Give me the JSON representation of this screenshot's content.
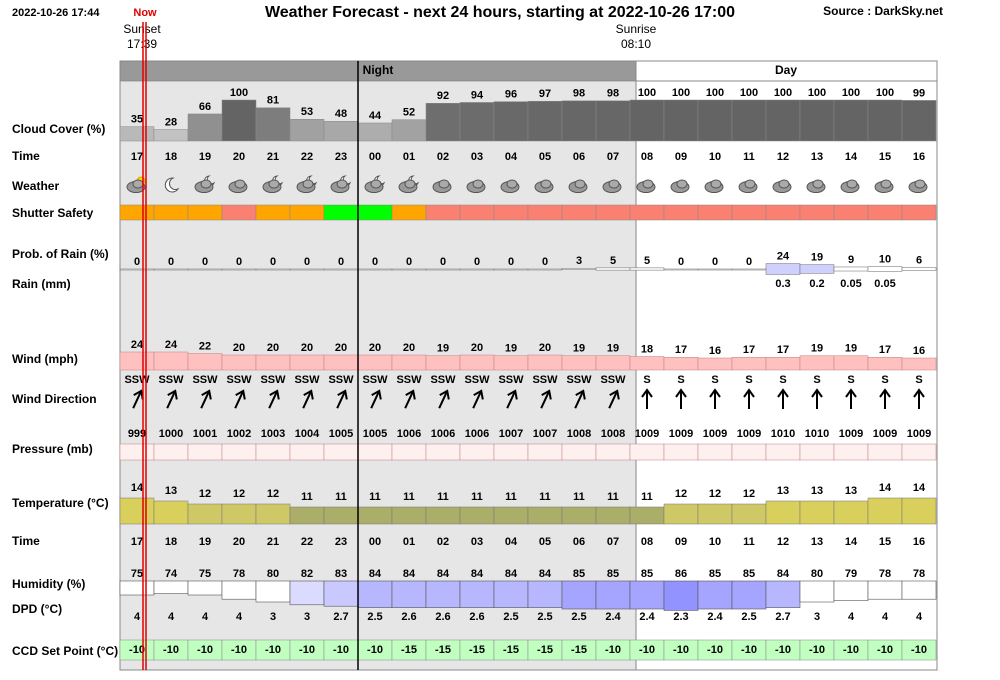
{
  "header": {
    "date": "2022-10-26 17:44",
    "now": "Now",
    "title": "Weather Forecast - next 24 hours, starting at 2022-10-26 17:00",
    "source": "Source : DarkSky.net",
    "sunset_label": "Sunset",
    "sunset_time": "17:39",
    "sunrise_label": "Sunrise",
    "sunrise_time": "08:10"
  },
  "bands": {
    "night": "Night",
    "day": "Day"
  },
  "hours": [
    "17",
    "18",
    "19",
    "20",
    "21",
    "22",
    "23",
    "00",
    "01",
    "02",
    "03",
    "04",
    "05",
    "06",
    "07",
    "08",
    "09",
    "10",
    "11",
    "12",
    "13",
    "14",
    "15",
    "16"
  ],
  "rows": {
    "cloud_cover": {
      "label": "Cloud Cover (%)",
      "values": [
        35,
        28,
        66,
        100,
        81,
        53,
        48,
        44,
        52,
        92,
        94,
        96,
        97,
        98,
        98,
        100,
        100,
        100,
        100,
        100,
        100,
        100,
        100,
        99
      ]
    },
    "time_label": "Time",
    "weather": {
      "label": "Weather"
    },
    "shutter_safety": {
      "label": "Shutter Safety",
      "colors": [
        "#ffa500",
        "#ffa500",
        "#ffa500",
        "#fa8072",
        "#ffa500",
        "#ffa500",
        "#00ff00",
        "#00ff00",
        "#ffa500",
        "#fa8072",
        "#fa8072",
        "#fa8072",
        "#fa8072",
        "#fa8072",
        "#fa8072",
        "#fa8072",
        "#fa8072",
        "#fa8072",
        "#fa8072",
        "#fa8072",
        "#fa8072",
        "#fa8072",
        "#fa8072",
        "#fa8072"
      ]
    },
    "prob_rain": {
      "label": "Prob. of Rain (%)",
      "values": [
        0,
        0,
        0,
        0,
        0,
        0,
        0,
        0,
        0,
        0,
        0,
        0,
        0,
        3,
        5,
        5,
        0,
        0,
        0,
        24,
        19,
        9,
        10,
        6
      ]
    },
    "rain": {
      "label": "Rain (mm)",
      "values": [
        null,
        null,
        null,
        null,
        null,
        null,
        null,
        null,
        null,
        null,
        null,
        null,
        null,
        null,
        null,
        null,
        null,
        null,
        null,
        0.3,
        0.2,
        0.05,
        0.05,
        null
      ]
    },
    "wind": {
      "label": "Wind (mph)",
      "values": [
        24,
        24,
        22,
        20,
        20,
        20,
        20,
        20,
        20,
        19,
        20,
        19,
        20,
        19,
        19,
        18,
        17,
        16,
        17,
        17,
        19,
        19,
        17,
        16
      ]
    },
    "wind_direction": {
      "label": "Wind Direction",
      "values": [
        "SSW",
        "SSW",
        "SSW",
        "SSW",
        "SSW",
        "SSW",
        "SSW",
        "SSW",
        "SSW",
        "SSW",
        "SSW",
        "SSW",
        "SSW",
        "SSW",
        "SSW",
        "S",
        "S",
        "S",
        "S",
        "S",
        "S",
        "S",
        "S",
        "S"
      ]
    },
    "pressure": {
      "label": "Pressure (mb)",
      "values": [
        999,
        1000,
        1001,
        1002,
        1003,
        1004,
        1005,
        1005,
        1006,
        1006,
        1006,
        1007,
        1007,
        1008,
        1008,
        1009,
        1009,
        1009,
        1009,
        1010,
        1010,
        1009,
        1009,
        1009
      ]
    },
    "temperature": {
      "label": "Temperature (°C)",
      "values": [
        14,
        13,
        12,
        12,
        12,
        11,
        11,
        11,
        11,
        11,
        11,
        11,
        11,
        11,
        11,
        11,
        12,
        12,
        12,
        13,
        13,
        13,
        14,
        14
      ]
    },
    "humidity": {
      "label": "Humidity (%)",
      "values": [
        75,
        74,
        75,
        78,
        80,
        82,
        83,
        84,
        84,
        84,
        84,
        84,
        84,
        85,
        85,
        85,
        86,
        85,
        85,
        84,
        80,
        79,
        78,
        78
      ]
    },
    "dpd": {
      "label": "DPD (°C)",
      "values": [
        4,
        4,
        4,
        4,
        3,
        3,
        2.7,
        2.5,
        2.6,
        2.6,
        2.6,
        2.5,
        2.5,
        2.5,
        2.4,
        2.4,
        2.3,
        2.4,
        2.5,
        2.7,
        3,
        4,
        4,
        4
      ]
    },
    "ccd": {
      "label": "CCD Set Point (°C)",
      "values": [
        -10,
        -10,
        -10,
        -10,
        -10,
        -10,
        -10,
        -10,
        -15,
        -15,
        -15,
        -15,
        -15,
        -15,
        -10,
        -10,
        -10,
        -10,
        -10,
        -10,
        -10,
        -10,
        -10,
        -10
      ]
    }
  }
}
